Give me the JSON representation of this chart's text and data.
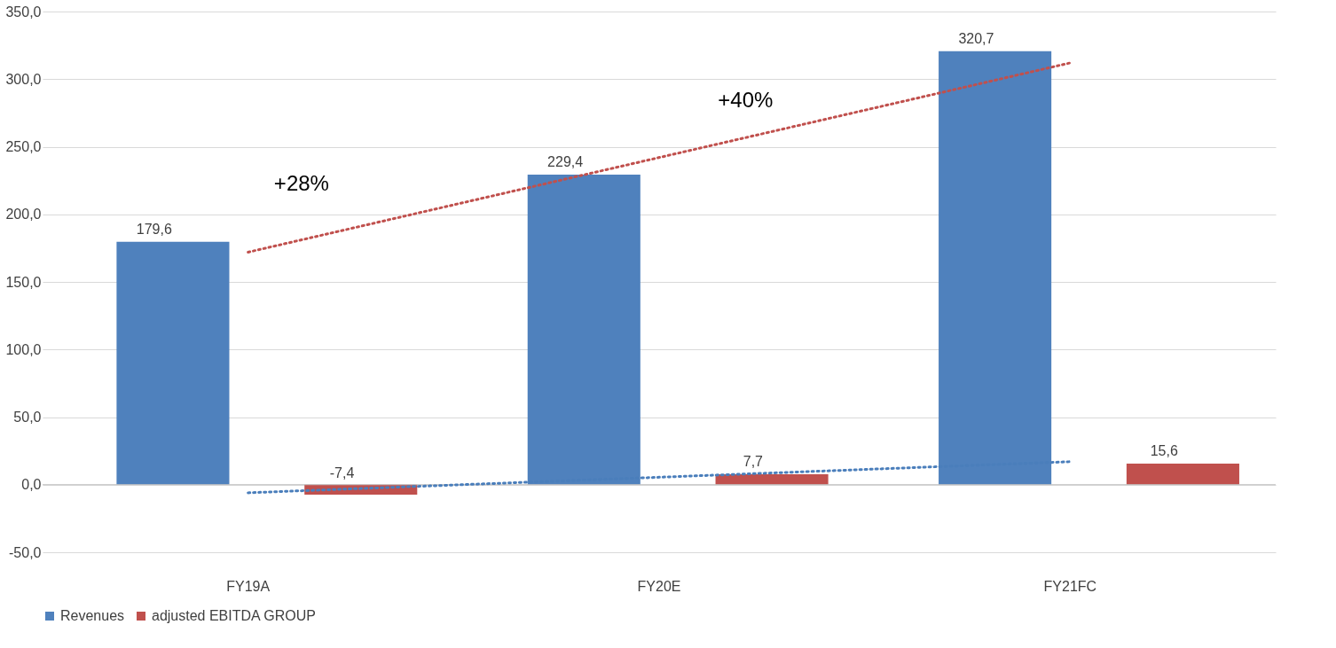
{
  "chart_data": {
    "type": "bar",
    "categories": [
      "FY19A",
      "FY20E",
      "FY21FC"
    ],
    "series": [
      {
        "name": "Revenues",
        "color": "#4f81bd",
        "values": [
          179.6,
          229.4,
          320.7
        ],
        "value_labels": [
          "179,6",
          "229,4",
          "320,7"
        ]
      },
      {
        "name": "adjusted EBITDA GROUP",
        "color": "#c0504d",
        "values": [
          -7.4,
          7.7,
          15.6
        ],
        "value_labels": [
          "-7,4",
          "7,7",
          "15,6"
        ]
      },
      {
        "type": "line",
        "color": "#c0504d",
        "line_style": "dotted",
        "x": [
          "FY19A",
          "FY21FC"
        ],
        "values": [
          172,
          312
        ]
      },
      {
        "type": "line",
        "color": "#4a7ebb",
        "line_style": "dotted",
        "x": [
          "FY19A",
          "FY21FC"
        ],
        "values": [
          -6,
          17
        ]
      }
    ],
    "ylim": [
      -50,
      350
    ],
    "yticks": [
      {
        "value": -50,
        "label": "-50,0"
      },
      {
        "value": 0,
        "label": "0,0"
      },
      {
        "value": 50,
        "label": "50,0"
      },
      {
        "value": 100,
        "label": "100,0"
      },
      {
        "value": 150,
        "label": "150,0"
      },
      {
        "value": 200,
        "label": "200,0"
      },
      {
        "value": 250,
        "label": "250,0"
      },
      {
        "value": 300,
        "label": "300,0"
      },
      {
        "value": 350,
        "label": "350,0"
      }
    ],
    "annotations": [
      "+28%",
      "+40%"
    ],
    "grid": "y",
    "legend": "bottom"
  }
}
